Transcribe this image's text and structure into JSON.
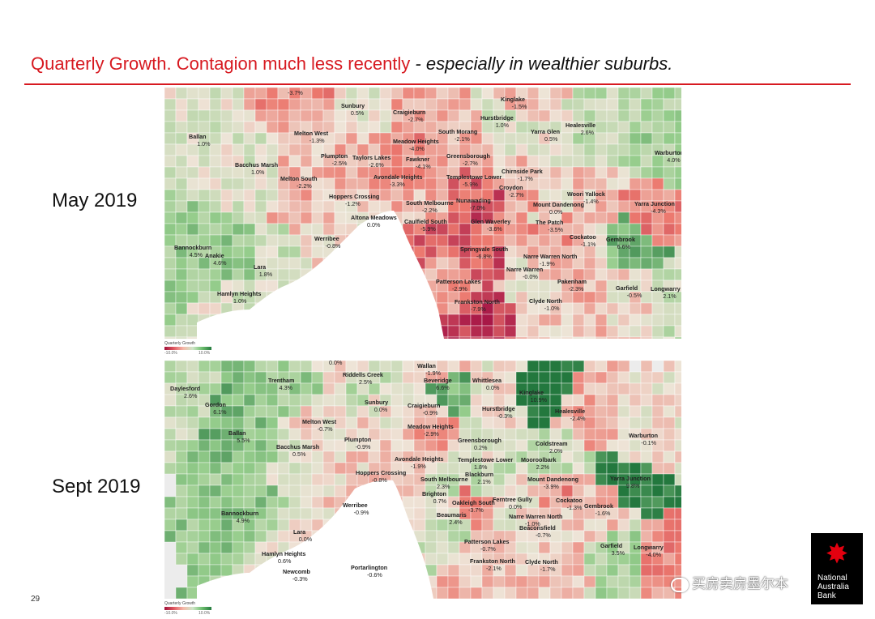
{
  "slide": {
    "title_main": "Quarterly Growth.  Contagion much less recently",
    "title_sub": " - especially in wealthier suburbs.",
    "page_number": "29"
  },
  "panels": [
    {
      "period": "May 2019",
      "legend": {
        "title": "Quarterly Growth",
        "low": "-10.0%",
        "high": "10.0%"
      },
      "suburbs": [
        {
          "name": "",
          "value": "-3.7%",
          "growth": -3.7
        },
        {
          "name": "Sunbury",
          "value": "0.5%",
          "growth": 0.5
        },
        {
          "name": "Craigieburn",
          "value": "-2.7%",
          "growth": -2.7
        },
        {
          "name": "Kinglake",
          "value": "-1.5%",
          "growth": -1.5
        },
        {
          "name": "Hurstbridge",
          "value": "1.0%",
          "growth": 1.0
        },
        {
          "name": "Healesville",
          "value": "2.6%",
          "growth": 2.6
        },
        {
          "name": "Ballan",
          "value": "1.0%",
          "growth": 1.0
        },
        {
          "name": "Melton West",
          "value": "-1.3%",
          "growth": -1.3
        },
        {
          "name": "Meadow Heights",
          "value": "-4.0%",
          "growth": -4.0
        },
        {
          "name": "South Morang",
          "value": "-2.1%",
          "growth": -2.1
        },
        {
          "name": "Yarra Glen",
          "value": "0.5%",
          "growth": 0.5
        },
        {
          "name": "Warburton",
          "value": "4.0%",
          "growth": 4.0
        },
        {
          "name": "Bacchus Marsh",
          "value": "1.0%",
          "growth": 1.0
        },
        {
          "name": "Plumpton",
          "value": "-2.5%",
          "growth": -2.5
        },
        {
          "name": "Taylors Lakes",
          "value": "-2.6%",
          "growth": -2.6
        },
        {
          "name": "Fawkner",
          "value": "-4.1%",
          "growth": -4.1
        },
        {
          "name": "Greensborough",
          "value": "-2.7%",
          "growth": -2.7
        },
        {
          "name": "Chirnside Park",
          "value": "-1.7%",
          "growth": -1.7
        },
        {
          "name": "Melton South",
          "value": "-2.2%",
          "growth": -2.2
        },
        {
          "name": "Avondale Heights",
          "value": "-3.3%",
          "growth": -3.3
        },
        {
          "name": "Templestowe Lower",
          "value": "-5.9%",
          "growth": -5.9
        },
        {
          "name": "Croydon",
          "value": "-2.7%",
          "growth": -2.7
        },
        {
          "name": "Woori Yallock",
          "value": "-1.4%",
          "growth": -1.4
        },
        {
          "name": "Hoppers Crossing",
          "value": "-1.2%",
          "growth": -1.2
        },
        {
          "name": "South Melbourne",
          "value": "-2.2%",
          "growth": -2.2
        },
        {
          "name": "Nunawading",
          "value": "-7.0%",
          "growth": -7.0
        },
        {
          "name": "Mount Dandenong",
          "value": "0.0%",
          "growth": 0.0
        },
        {
          "name": "Yarra Junction",
          "value": "-4.3%",
          "growth": -4.3
        },
        {
          "name": "Altona Meadows",
          "value": "0.0%",
          "growth": 0.0
        },
        {
          "name": "Caulfield South",
          "value": "-5.9%",
          "growth": -5.9
        },
        {
          "name": "Glen Waverley",
          "value": "-3.6%",
          "growth": -3.6
        },
        {
          "name": "The Patch",
          "value": "-3.5%",
          "growth": -3.5
        },
        {
          "name": "Cockatoo",
          "value": "-1.1%",
          "growth": -1.1
        },
        {
          "name": "Gembrook",
          "value": "6.6%",
          "growth": 6.6
        },
        {
          "name": "Werribee",
          "value": "-0.8%",
          "growth": -0.8
        },
        {
          "name": "Springvale South",
          "value": "-6.8%",
          "growth": -6.8
        },
        {
          "name": "Narre Warren North",
          "value": "-1.9%",
          "growth": -1.9
        },
        {
          "name": "Bannockburn",
          "value": "4.5%",
          "growth": 4.5
        },
        {
          "name": "Anakie",
          "value": "4.6%",
          "growth": 4.6
        },
        {
          "name": "Lara",
          "value": "1.8%",
          "growth": 1.8
        },
        {
          "name": "Narre Warren",
          "value": "-0.0%",
          "growth": -0.0
        },
        {
          "name": "Patterson Lakes",
          "value": "-2.9%",
          "growth": -2.9
        },
        {
          "name": "Pakenham",
          "value": "-2.3%",
          "growth": -2.3
        },
        {
          "name": "Garfield",
          "value": "-0.5%",
          "growth": -0.5
        },
        {
          "name": "Longwarry",
          "value": "2.1%",
          "growth": 2.1
        },
        {
          "name": "Hamlyn Heights",
          "value": "1.0%",
          "growth": 1.0
        },
        {
          "name": "Frankston North",
          "value": "-7.9%",
          "growth": -7.9
        },
        {
          "name": "Clyde North",
          "value": "-1.0%",
          "growth": -1.0
        }
      ]
    },
    {
      "period": "Sept 2019",
      "legend": {
        "title": "Quarterly Growth",
        "low": "-10.0%",
        "high": "10.0%"
      },
      "suburbs": [
        {
          "name": "",
          "value": "0.0%",
          "growth": 0.0
        },
        {
          "name": "Wallan",
          "value": "-1.9%",
          "growth": -1.9
        },
        {
          "name": "Riddells Creek",
          "value": "2.5%",
          "growth": 2.5
        },
        {
          "name": "Beveridge",
          "value": "6.6%",
          "growth": 6.6
        },
        {
          "name": "Whittlesea",
          "value": "0.0%",
          "growth": 0.0
        },
        {
          "name": "Kinglake",
          "value": "10.9%",
          "growth": 10.9
        },
        {
          "name": "Trentham",
          "value": "4.3%",
          "growth": 4.3
        },
        {
          "name": "Daylesford",
          "value": "2.6%",
          "growth": 2.6
        },
        {
          "name": "Sunbury",
          "value": "0.0%",
          "growth": 0.0
        },
        {
          "name": "Craigieburn",
          "value": "-0.9%",
          "growth": -0.9
        },
        {
          "name": "Hurstbridge",
          "value": "-0.3%",
          "growth": -0.3
        },
        {
          "name": "Healesville",
          "value": "-2.4%",
          "growth": -2.4
        },
        {
          "name": "Gordon",
          "value": "6.1%",
          "growth": 6.1
        },
        {
          "name": "Melton West",
          "value": "-0.7%",
          "growth": -0.7
        },
        {
          "name": "Meadow Heights",
          "value": "-2.9%",
          "growth": -2.9
        },
        {
          "name": "Ballan",
          "value": "5.5%",
          "growth": 5.5
        },
        {
          "name": "Plumpton",
          "value": "-0.9%",
          "growth": -0.9
        },
        {
          "name": "Greensborough",
          "value": "0.2%",
          "growth": 0.2
        },
        {
          "name": "Coldstream",
          "value": "2.0%",
          "growth": 2.0
        },
        {
          "name": "Warburton",
          "value": "-0.1%",
          "growth": -0.1
        },
        {
          "name": "Bacchus Marsh",
          "value": "0.5%",
          "growth": 0.5
        },
        {
          "name": "Avondale Heights",
          "value": "-1.9%",
          "growth": -1.9
        },
        {
          "name": "Templestowe Lower",
          "value": "1.8%",
          "growth": 1.8
        },
        {
          "name": "Mooroolbark",
          "value": "2.2%",
          "growth": 2.2
        },
        {
          "name": "Hoppers Crossing",
          "value": "-0.8%",
          "growth": -0.8
        },
        {
          "name": "Blackburn",
          "value": "2.1%",
          "growth": 2.1
        },
        {
          "name": "Mount Dandenong",
          "value": "-3.9%",
          "growth": -3.9
        },
        {
          "name": "South Melbourne",
          "value": "2.3%",
          "growth": 2.3
        },
        {
          "name": "Yarra Junction",
          "value": "9.8%",
          "growth": 9.8
        },
        {
          "name": "Brighton",
          "value": "0.7%",
          "growth": 0.7
        },
        {
          "name": "Oakleigh South",
          "value": "-3.7%",
          "growth": -3.7
        },
        {
          "name": "Ferntree Gully",
          "value": "0.0%",
          "growth": 0.0
        },
        {
          "name": "Cockatoo",
          "value": "-1.3%",
          "growth": -1.3
        },
        {
          "name": "Werribee",
          "value": "-0.9%",
          "growth": -0.9
        },
        {
          "name": "Gembrook",
          "value": "-1.6%",
          "growth": -1.6
        },
        {
          "name": "Bannockburn",
          "value": "4.9%",
          "growth": 4.9
        },
        {
          "name": "Beaumaris",
          "value": "2.4%",
          "growth": 2.4
        },
        {
          "name": "Narre Warren North",
          "value": "-1.0%",
          "growth": -1.0
        },
        {
          "name": "Lara",
          "value": "0.0%",
          "growth": 0.0
        },
        {
          "name": "Beaconsfield",
          "value": "-0.7%",
          "growth": -0.7
        },
        {
          "name": "Patterson Lakes",
          "value": "-0.7%",
          "growth": -0.7
        },
        {
          "name": "Garfield",
          "value": "3.5%",
          "growth": 3.5
        },
        {
          "name": "Longwarry",
          "value": "-4.0%",
          "growth": -4.0
        },
        {
          "name": "Hamlyn Heights",
          "value": "0.6%",
          "growth": 0.6
        },
        {
          "name": "Frankston North",
          "value": "-2.1%",
          "growth": -2.1
        },
        {
          "name": "Clyde North",
          "value": "-1.7%",
          "growth": -1.7
        },
        {
          "name": "Newcomb",
          "value": "-0.3%",
          "growth": -0.3
        },
        {
          "name": "Portarlington",
          "value": "-0.6%",
          "growth": -0.6
        }
      ]
    }
  ],
  "watermark": "买房卖房墨尔本",
  "logo": {
    "line1": "National",
    "line2": "Australia",
    "line3": "Bank"
  },
  "colors": {
    "accent": "#d71920",
    "bay": "#ffffff",
    "land_unmapped": "#ececec",
    "text": "#222222"
  }
}
